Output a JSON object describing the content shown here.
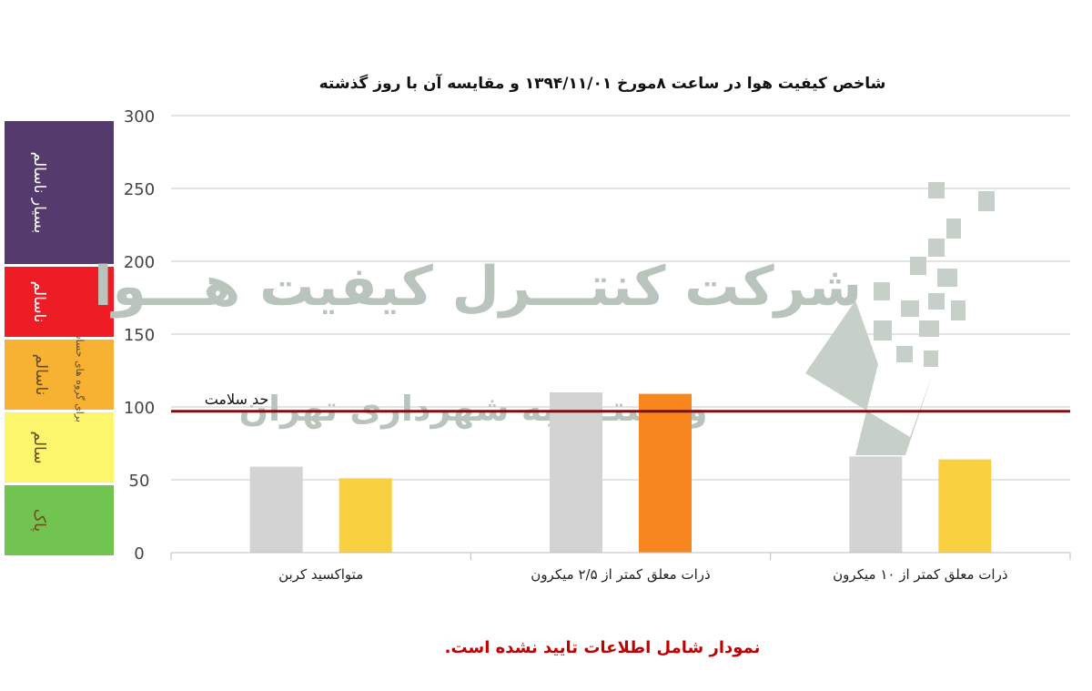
{
  "chart_data": {
    "type": "bar",
    "title": "شاخص کیفیت هوا در ساعت ۸مورخ ۱۳۹۴/۱۱/۰۱ و مقایسه آن با روز گذشته",
    "categories": [
      "متواکسید کربن",
      "ذرات معلق کمتر از ۲/۵ میکرون",
      "ذرات معلق کمتر از ۱۰ میکرون"
    ],
    "series": [
      {
        "values": [
          59,
          110,
          66
        ],
        "color": "#d3d3d3"
      },
      {
        "values": [
          51,
          109,
          64
        ],
        "colors": [
          "#f9d03f",
          "#f7861f",
          "#f9d03f"
        ]
      }
    ],
    "ylim": [
      0,
      300
    ],
    "yticks": [
      0,
      50,
      100,
      150,
      200,
      250,
      300
    ],
    "grid": true,
    "health_limit": {
      "value": 97,
      "label": "حد سلامت",
      "color": "#7a1010"
    },
    "aqi_bands": [
      {
        "from": 0,
        "to": 50,
        "label": "پاک",
        "color": "#72c451"
      },
      {
        "from": 50,
        "to": 100,
        "label": "سالم",
        "color": "#fcf66d"
      },
      {
        "from": 100,
        "to": 150,
        "label": "ناسالم",
        "sub": "برای گروه های حساس",
        "color": "#f7b233"
      },
      {
        "from": 150,
        "to": 200,
        "label": "ناسالم",
        "color": "#ee1c25"
      },
      {
        "from": 200,
        "to": 300,
        "label": "بسیار ناسالم",
        "color": "#553a6e"
      }
    ]
  },
  "watermark": {
    "line1": "شرکت کنتـــرل کیفیت هـــوا",
    "line2": "وابستــه به شهرداری تهران"
  },
  "footer_note": "نمودار شامل اطلاعات تایید نشده است."
}
